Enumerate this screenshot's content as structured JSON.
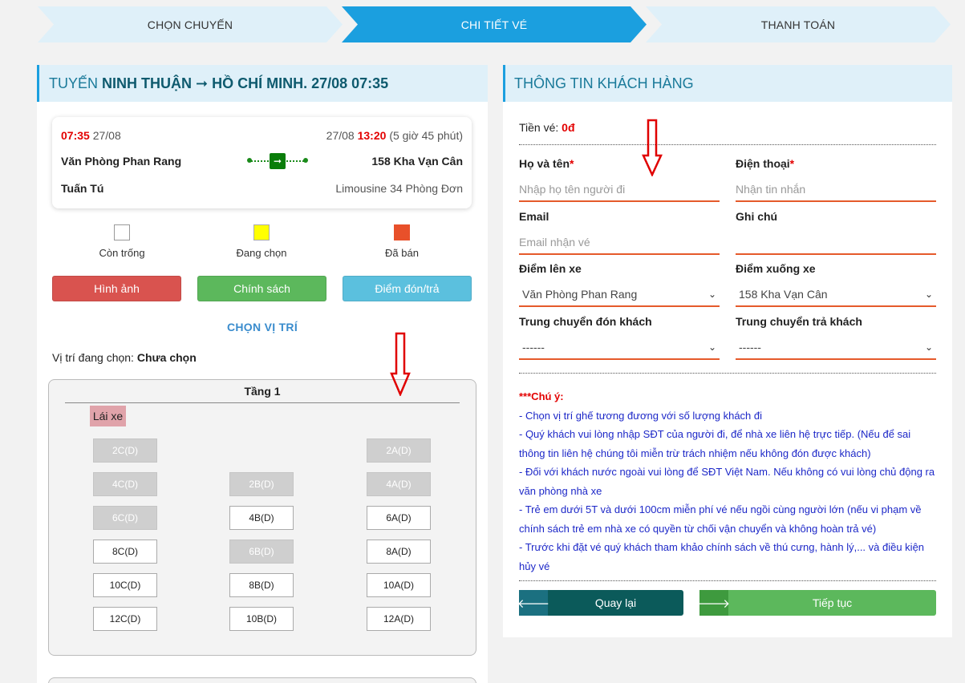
{
  "steps": [
    "CHỌN CHUYẾN",
    "CHI TIẾT VÉ",
    "THANH TOÁN"
  ],
  "trip": {
    "header_prefix": "TUYẾN ",
    "route": "NINH THUẬN ➞ HỒ CHÍ MINH",
    "datetime": ". 27/08 07:35",
    "depart_time": "07:35",
    "depart_date": "27/08",
    "arrive_date": "27/08",
    "arrive_time": "13:20",
    "duration": "(5 giờ 45 phút)",
    "from": "Văn Phòng Phan Rang",
    "to": "158 Kha Vạn Cân",
    "operator": "Tuấn Tú",
    "vehicle": "Limousine 34 Phòng Đơn",
    "bus_icon": "➞"
  },
  "legend": {
    "empty": "Còn trống",
    "selecting": "Đang chọn",
    "sold": "Đã bán",
    "colors": {
      "empty": "#ffffff",
      "selecting": "#ffff00",
      "sold": "#e8502a"
    }
  },
  "buttons": {
    "images": "Hình ảnh",
    "policy": "Chính sách",
    "pickup": "Điểm đón/trả"
  },
  "pick": {
    "title": "CHỌN VỊ TRÍ",
    "current_label": "Vị trí đang chọn: ",
    "current_value": "Chưa chọn"
  },
  "floor": {
    "title": "Tầng 1",
    "driver": "Lái xe",
    "seats": [
      {
        "id": "2C(D)",
        "status": "sold"
      },
      {
        "id": "2A(D)",
        "status": "sold"
      },
      {
        "id": "4C(D)",
        "status": "sold"
      },
      {
        "id": "2B(D)",
        "status": "sold"
      },
      {
        "id": "4A(D)",
        "status": "sold"
      },
      {
        "id": "6C(D)",
        "status": "sold"
      },
      {
        "id": "4B(D)",
        "status": "empty"
      },
      {
        "id": "6A(D)",
        "status": "empty"
      },
      {
        "id": "8C(D)",
        "status": "empty"
      },
      {
        "id": "6B(D)",
        "status": "sold"
      },
      {
        "id": "8A(D)",
        "status": "empty"
      },
      {
        "id": "10C(D)",
        "status": "empty"
      },
      {
        "id": "8B(D)",
        "status": "empty"
      },
      {
        "id": "10A(D)",
        "status": "empty"
      },
      {
        "id": "12C(D)",
        "status": "empty"
      },
      {
        "id": "10B(D)",
        "status": "empty"
      },
      {
        "id": "12A(D)",
        "status": "empty"
      }
    ]
  },
  "customer": {
    "title": "THÔNG TIN KHÁCH HÀNG",
    "price_label": "Tiền vé: ",
    "price_value": "0đ",
    "name_label": "Họ và tên",
    "name_placeholder": "Nhập họ tên người đi",
    "phone_label": "Điện thoại",
    "phone_placeholder": "Nhận tin nhắn",
    "email_label": "Email",
    "email_placeholder": "Email nhận vé",
    "note_label": "Ghi chú",
    "note_value": "",
    "pickup_label": "Điểm lên xe",
    "pickup_value": "Văn Phòng Phan Rang",
    "dropoff_label": "Điểm xuống xe",
    "dropoff_value": "158 Kha Vạn Cân",
    "transfer_pickup_label": "Trung chuyển đón khách",
    "transfer_pickup_value": "------",
    "transfer_dropoff_label": "Trung chuyển trả khách",
    "transfer_dropoff_value": "------",
    "required_mark": "*"
  },
  "notes": {
    "head": "***Chú ý:",
    "items": [
      "- Chọn vị trí ghế tương đương với số lượng khách đi",
      "- Quý khách vui lòng nhập SĐT của người đi, để nhà xe liên hệ trực tiếp. (Nếu để sai thông tin liên hệ chúng tôi miễn trừ trách nhiệm nếu không đón được khách)",
      "- Đối với khách nước ngoài vui lòng để SĐT Việt Nam. Nếu không có vui lòng chủ động ra văn phòng nhà xe",
      "- Trẻ em dưới 5T và dưới 100cm miễn phí vé nếu ngồi cùng người lớn (nếu vi phạm về chính sách trẻ em nhà xe có quyền từ chối vận chuyển và không hoàn trả vé)",
      "- Trước khi đặt vé quý khách tham khảo chính sách về thú cưng, hành lý,... và điều kiện hủy vé"
    ]
  },
  "actions": {
    "back": "Quay lại",
    "next": "Tiếp tục",
    "back_icon": "🡐",
    "next_icon": "🡒"
  }
}
